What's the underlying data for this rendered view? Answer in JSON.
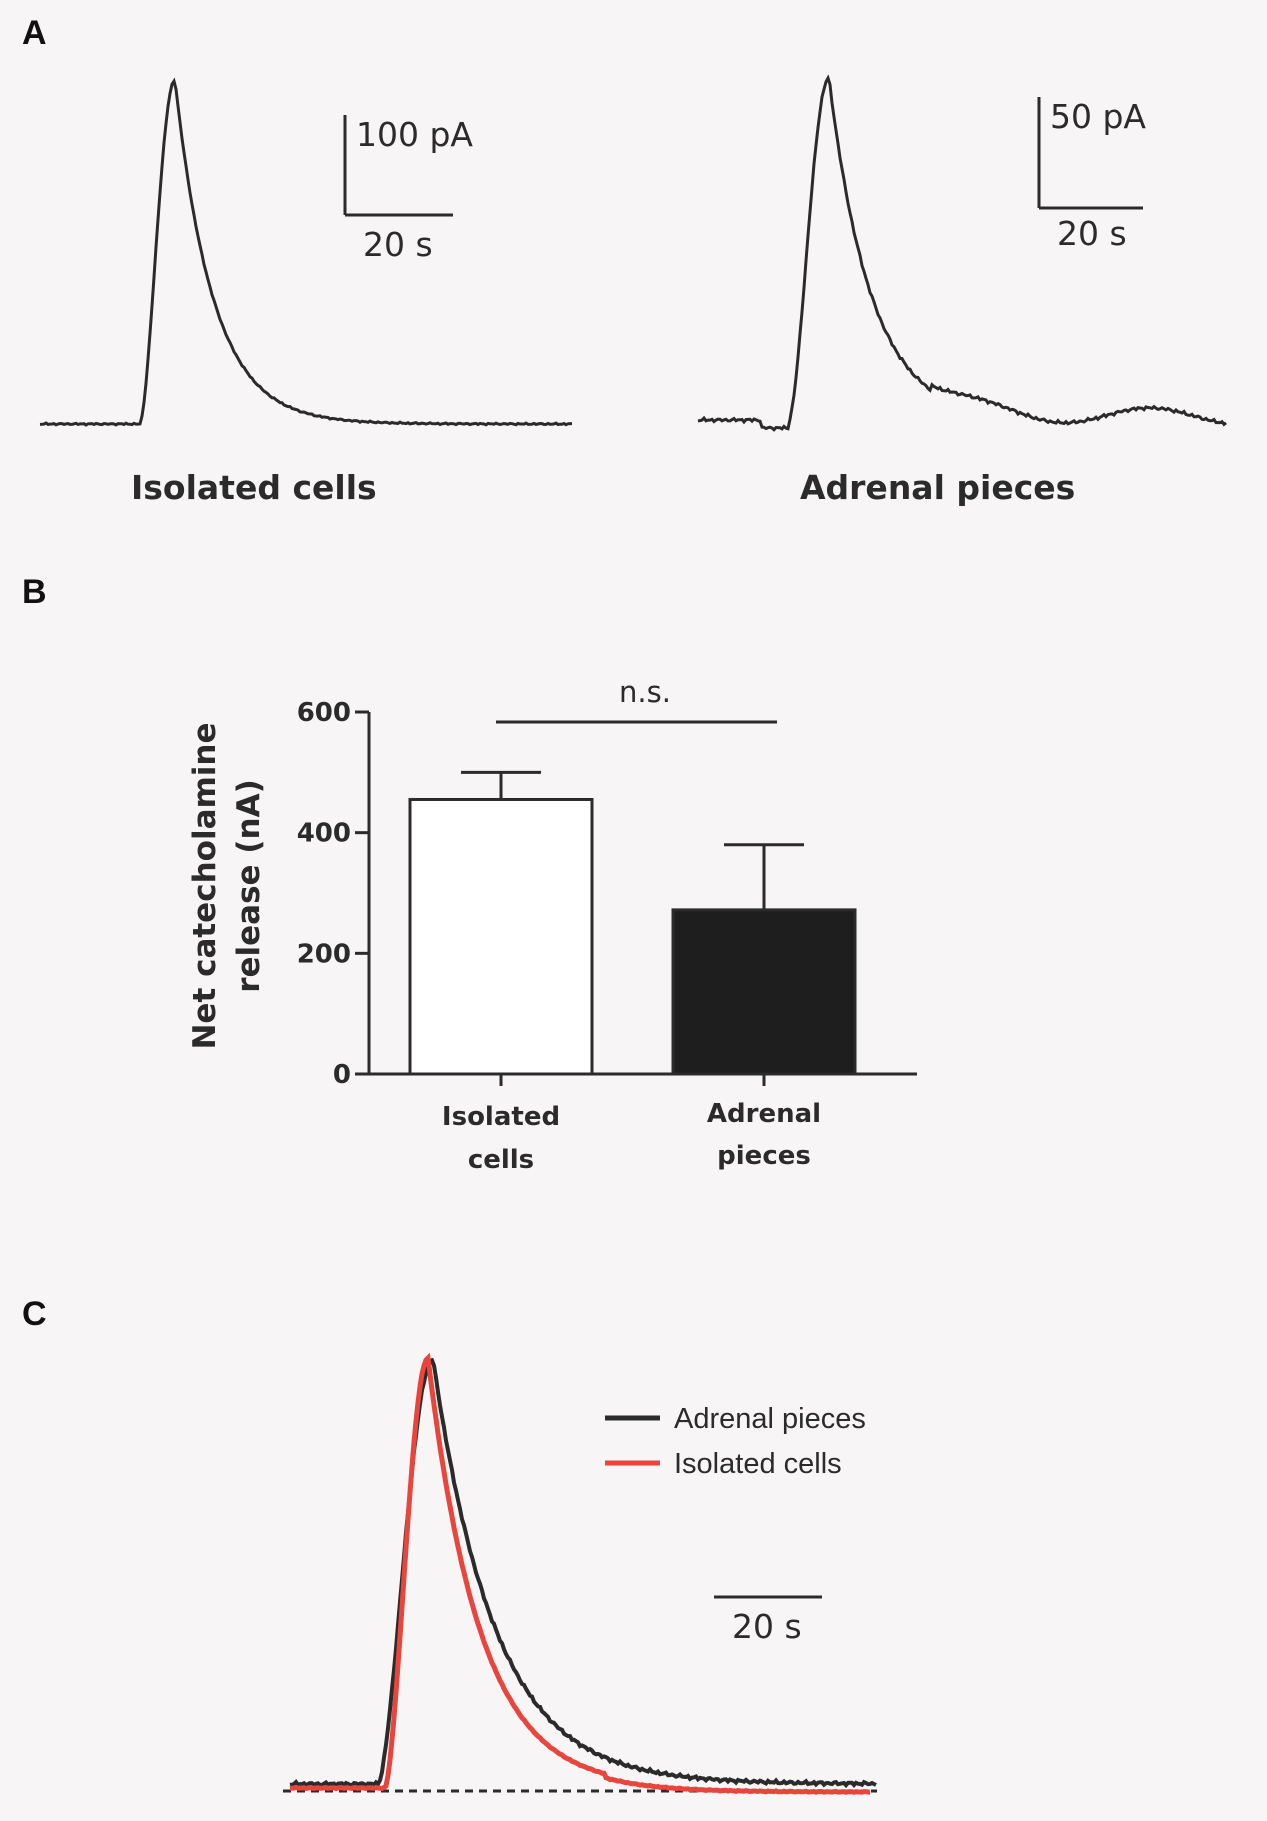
{
  "panels": {
    "a": {
      "letter": "A"
    },
    "b": {
      "letter": "B"
    },
    "c": {
      "letter": "C"
    }
  },
  "chart_data": [
    {
      "type": "line",
      "panel": "A-left",
      "trace_label": "Isolated cells",
      "scale_bar": {
        "y_label": "100 pA",
        "x_label": "20 s",
        "y_value_pA": 100,
        "x_value_s": 20
      },
      "color": "#2b2b2b"
    },
    {
      "type": "line",
      "panel": "A-right",
      "trace_label": "Adrenal pieces",
      "scale_bar": {
        "y_label": "50 pA",
        "x_label": "20 s",
        "y_value_pA": 50,
        "x_value_s": 20
      },
      "color": "#2b2b2b"
    },
    {
      "type": "bar",
      "panel": "B",
      "categories": [
        {
          "line1": "Isolated",
          "line2": "cells"
        },
        {
          "line1": "Adrenal",
          "line2": "pieces"
        }
      ],
      "values": [
        455,
        272
      ],
      "errors": [
        45,
        108
      ],
      "bar_fills": [
        "#ffffff",
        "#1e1e1e"
      ],
      "ylabel_line1": "Net  catecholamine",
      "ylabel_line2": "release (nA)",
      "ylim": [
        0,
        600
      ],
      "y_ticks": [
        {
          "value": 0,
          "label": "0"
        },
        {
          "value": 200,
          "label": "200"
        },
        {
          "value": 400,
          "label": "400"
        },
        {
          "value": 600,
          "label": "600"
        }
      ],
      "significance": "n.s."
    },
    {
      "type": "line",
      "panel": "C",
      "series": [
        {
          "name": "Adrenal pieces",
          "color": "#2b2b2b"
        },
        {
          "name": "Isolated cells",
          "color": "#e8453c"
        }
      ],
      "scale_bar": {
        "x_label": "20 s",
        "x_value_s": 20
      },
      "legend_position": "top-right",
      "baseline": "dashed"
    }
  ]
}
